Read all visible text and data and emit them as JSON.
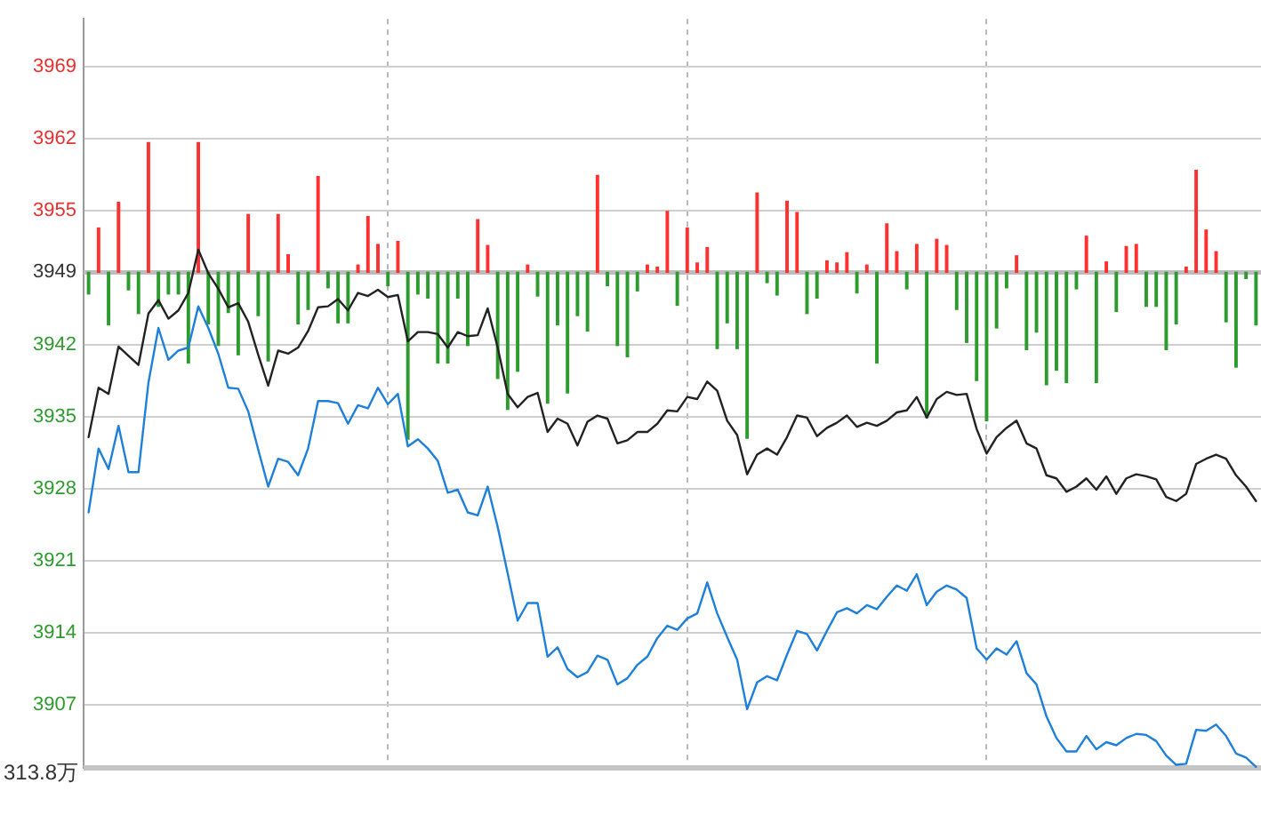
{
  "chart_data": {
    "type": "bar",
    "categories": [
      null,
      null,
      null,
      null,
      null,
      null,
      null,
      null,
      null,
      null,
      null,
      null,
      null,
      null,
      null,
      null,
      null,
      null,
      null,
      null,
      null,
      null,
      null,
      null,
      null,
      null,
      null,
      null,
      null,
      null,
      null,
      null,
      null,
      null,
      null,
      null,
      null,
      null,
      null,
      null,
      null,
      null,
      null,
      null,
      null,
      null,
      null,
      null,
      null,
      null,
      null,
      null,
      null,
      null,
      null,
      null,
      null,
      null,
      null,
      null,
      null,
      null,
      null,
      null,
      null,
      null,
      null,
      null,
      null,
      null,
      null,
      null,
      null,
      null,
      null,
      null,
      null,
      null,
      null,
      null,
      null,
      null,
      null,
      null,
      null,
      null,
      null,
      null,
      null,
      null,
      null,
      null,
      null,
      null,
      null,
      null,
      null,
      null,
      null,
      null,
      null,
      null,
      null,
      null,
      null,
      null,
      null,
      null,
      null,
      null,
      null,
      null,
      null,
      null,
      null,
      null,
      null,
      null
    ],
    "ylim": [
      3900.9,
      3973.6
    ],
    "yticks": [
      3907,
      3914,
      3921,
      3928,
      3935,
      3942,
      3949,
      3955,
      3962,
      3969
    ],
    "tick_labels": "y",
    "grid": true,
    "legend": false,
    "ref_lines": [
      {
        "axis": "y",
        "value": 3949,
        "color": "#bdbdbd"
      }
    ],
    "annotations": [
      "313.8万"
    ],
    "series": [
      {
        "values": [
          -2.1,
          4.3,
          -5.1,
          6.8,
          -1.7,
          -4.0,
          12.6,
          -3.3,
          -2.1,
          -2.1,
          -8.8,
          12.6,
          -5.0,
          -7.1,
          -3.9,
          -8.0,
          5.6,
          -4.2,
          -8.6,
          5.6,
          1.7,
          -5.0,
          -3.6,
          9.3,
          -1.5,
          -4.9,
          -4.9,
          0.7,
          5.4,
          2.7,
          -1.3,
          3.0,
          -16.2,
          -2.1,
          -2.5,
          -8.8,
          -8.8,
          -2.5,
          -7.1,
          5.1,
          2.6,
          -10.3,
          -13.3,
          -9.6,
          0.7,
          -2.3,
          -12.7,
          -5.1,
          -11.7,
          -4.2,
          -5.7,
          9.4,
          -1.3,
          -7.1,
          -8.2,
          -1.8,
          0.7,
          0.5,
          5.9,
          -3.2,
          4.3,
          0.9,
          2.4,
          -7.4,
          -4.9,
          -7.4,
          -16.1,
          7.7,
          -1.0,
          -2.2,
          6.9,
          5.8,
          -4.0,
          -2.5,
          1.1,
          0.9,
          1.9,
          -2.0,
          0.7,
          -8.8,
          4.7,
          2.0,
          -1.6,
          2.7,
          -14.1,
          3.2,
          2.6,
          -3.6,
          -6.8,
          -10.5,
          -14.4,
          -5.4,
          -1.5,
          1.6,
          -7.5,
          -5.8,
          -10.9,
          -9.5,
          -10.7,
          -1.6,
          3.5,
          -10.7,
          1.0,
          -3.8,
          2.5,
          2.7,
          -3.3,
          -3.3,
          -7.5,
          -5.0,
          0.5,
          9.9,
          4.1,
          2.0,
          -4.8,
          -9.2,
          -0.6,
          -5.1
        ],
        "base": [
          3949,
          3949,
          3949,
          3949,
          3949,
          3949,
          3949,
          3949,
          3949,
          3949,
          3949,
          3949,
          3949,
          3949,
          3949,
          3949,
          3949,
          3949,
          3949,
          3949,
          3949,
          3949,
          3949,
          3949,
          3949,
          3949,
          3949,
          3949,
          3949,
          3949,
          3949,
          3949,
          3949,
          3949,
          3949,
          3949,
          3949,
          3949,
          3949,
          3949,
          3949,
          3949,
          3949,
          3949,
          3949,
          3949,
          3949,
          3949,
          3949,
          3949,
          3949,
          3949,
          3949,
          3949,
          3949,
          3949,
          3949,
          3949,
          3949,
          3949,
          3949,
          3949,
          3949,
          3949,
          3949,
          3949,
          3949,
          3949,
          3949,
          3949,
          3949,
          3949,
          3949,
          3949,
          3949,
          3949,
          3949,
          3949,
          3949,
          3949,
          3949,
          3949,
          3949,
          3949,
          3949,
          3949,
          3949,
          3949,
          3949,
          3949,
          3949,
          3949,
          3949,
          3949,
          3949,
          3949,
          3949,
          3949,
          3949,
          3949,
          3949,
          3949,
          3949,
          3949,
          3949,
          3949,
          3949,
          3949,
          3949,
          3949,
          3949,
          3949,
          3949,
          3949,
          3949,
          3949,
          3949,
          3949
        ],
        "colors": [
          "#2e9b2e",
          "#ff3030",
          "#2e9b2e",
          "#ff3030",
          "#2e9b2e",
          "#2e9b2e",
          "#ff3030",
          "#2e9b2e",
          "#2e9b2e",
          "#2e9b2e",
          "#2e9b2e",
          "#ff3030",
          "#2e9b2e",
          "#2e9b2e",
          "#2e9b2e",
          "#2e9b2e",
          "#ff3030",
          "#2e9b2e",
          "#2e9b2e",
          "#ff3030",
          "#ff3030",
          "#2e9b2e",
          "#2e9b2e",
          "#ff3030",
          "#2e9b2e",
          "#2e9b2e",
          "#2e9b2e",
          "#ff3030",
          "#ff3030",
          "#ff3030",
          "#2e9b2e",
          "#ff3030",
          "#2e9b2e",
          "#2e9b2e",
          "#2e9b2e",
          "#2e9b2e",
          "#2e9b2e",
          "#2e9b2e",
          "#2e9b2e",
          "#ff3030",
          "#ff3030",
          "#2e9b2e",
          "#2e9b2e",
          "#2e9b2e",
          "#ff3030",
          "#2e9b2e",
          "#2e9b2e",
          "#2e9b2e",
          "#2e9b2e",
          "#2e9b2e",
          "#2e9b2e",
          "#ff3030",
          "#2e9b2e",
          "#2e9b2e",
          "#2e9b2e",
          "#2e9b2e",
          "#ff3030",
          "#ff3030",
          "#ff3030",
          "#2e9b2e",
          "#ff3030",
          "#ff3030",
          "#ff3030",
          "#2e9b2e",
          "#2e9b2e",
          "#2e9b2e",
          "#2e9b2e",
          "#ff3030",
          "#2e9b2e",
          "#2e9b2e",
          "#ff3030",
          "#ff3030",
          "#2e9b2e",
          "#2e9b2e",
          "#ff3030",
          "#ff3030",
          "#ff3030",
          "#2e9b2e",
          "#ff3030",
          "#2e9b2e",
          "#ff3030",
          "#ff3030",
          "#2e9b2e",
          "#ff3030",
          "#2e9b2e",
          "#ff3030",
          "#ff3030",
          "#2e9b2e",
          "#2e9b2e",
          "#2e9b2e",
          "#2e9b2e",
          "#2e9b2e",
          "#2e9b2e",
          "#ff3030",
          "#2e9b2e",
          "#2e9b2e",
          "#2e9b2e",
          "#2e9b2e",
          "#2e9b2e",
          "#2e9b2e",
          "#ff3030",
          "#2e9b2e",
          "#ff3030",
          "#2e9b2e",
          "#ff3030",
          "#ff3030",
          "#2e9b2e",
          "#2e9b2e",
          "#2e9b2e",
          "#2e9b2e",
          "#ff3030",
          "#ff3030",
          "#ff3030",
          "#ff3030",
          "#2e9b2e",
          "#2e9b2e",
          "#2e9b2e",
          "#2e9b2e"
        ]
      },
      {
        "type": "line",
        "color": "#222222",
        "values": [
          3933.0,
          3937.8,
          3937.2,
          3941.8,
          3940.9,
          3940.0,
          3945.0,
          3946.3,
          3944.5,
          3945.3,
          3947.0,
          3951.2,
          3948.9,
          3947.4,
          3945.6,
          3946.0,
          3944.2,
          3941.0,
          3938.0,
          3941.4,
          3941.1,
          3941.7,
          3943.3,
          3945.6,
          3945.7,
          3946.4,
          3945.3,
          3947.0,
          3946.7,
          3947.3,
          3946.6,
          3946.8,
          3942.3,
          3943.2,
          3943.2,
          3943.0,
          3941.7,
          3943.2,
          3942.8,
          3942.9,
          3945.5,
          3941.7,
          3937.2,
          3935.9,
          3936.9,
          3937.3,
          3933.5,
          3934.8,
          3934.3,
          3932.2,
          3934.5,
          3935.1,
          3934.8,
          3932.4,
          3932.7,
          3933.5,
          3933.5,
          3934.3,
          3935.6,
          3935.5,
          3936.9,
          3936.7,
          3938.4,
          3937.5,
          3934.6,
          3933.2,
          3929.4,
          3931.3,
          3931.9,
          3931.3,
          3933.0,
          3935.1,
          3934.9,
          3933.1,
          3933.9,
          3934.4,
          3935.1,
          3934.0,
          3934.4,
          3934.1,
          3934.6,
          3935.4,
          3935.6,
          3936.9,
          3934.9,
          3936.7,
          3937.4,
          3937.1,
          3937.2,
          3933.8,
          3931.4,
          3933.0,
          3933.9,
          3934.6,
          3932.4,
          3931.9,
          3929.3,
          3929.0,
          3927.7,
          3928.2,
          3929.0,
          3927.9,
          3929.2,
          3927.5,
          3929.0,
          3929.4,
          3929.2,
          3928.9,
          3927.2,
          3926.8,
          3927.5,
          3930.4,
          3930.9,
          3931.3,
          3930.9,
          3929.3,
          3928.2,
          3926.8
        ]
      },
      {
        "type": "line",
        "color": "#1e80d8",
        "values": [
          3925.7,
          3931.9,
          3929.9,
          3934.1,
          3929.6,
          3929.6,
          3938.3,
          3943.6,
          3940.5,
          3941.4,
          3941.7,
          3945.7,
          3943.6,
          3941.1,
          3937.8,
          3937.7,
          3935.5,
          3931.8,
          3928.2,
          3930.9,
          3930.6,
          3929.3,
          3931.9,
          3936.5,
          3936.5,
          3936.3,
          3934.3,
          3936.1,
          3935.8,
          3937.8,
          3936.2,
          3937.2,
          3932.1,
          3932.8,
          3931.9,
          3930.7,
          3927.6,
          3927.9,
          3925.7,
          3925.4,
          3928.2,
          3924.3,
          3919.8,
          3915.2,
          3916.9,
          3916.9,
          3911.7,
          3912.6,
          3910.5,
          3909.7,
          3910.2,
          3911.8,
          3911.4,
          3909.0,
          3909.6,
          3910.9,
          3911.7,
          3913.5,
          3914.7,
          3914.3,
          3915.4,
          3915.9,
          3918.9,
          3915.9,
          3913.6,
          3911.4,
          3906.6,
          3909.2,
          3909.8,
          3909.4,
          3911.9,
          3914.2,
          3913.9,
          3912.3,
          3914.2,
          3916.0,
          3916.4,
          3915.9,
          3916.7,
          3916.3,
          3917.5,
          3918.6,
          3918.1,
          3919.7,
          3916.7,
          3918.0,
          3918.6,
          3918.2,
          3917.4,
          3912.5,
          3911.4,
          3912.5,
          3911.9,
          3913.2,
          3910.1,
          3909.0,
          3905.9,
          3903.8,
          3902.5,
          3902.5,
          3904.0,
          3902.7,
          3903.4,
          3903.1,
          3903.8,
          3904.2,
          3904.1,
          3903.5,
          3902.1,
          3901.2,
          3901.3,
          3904.6,
          3904.5,
          3905.1,
          3904.0,
          3902.3,
          3901.9,
          3901.0
        ]
      }
    ]
  }
}
